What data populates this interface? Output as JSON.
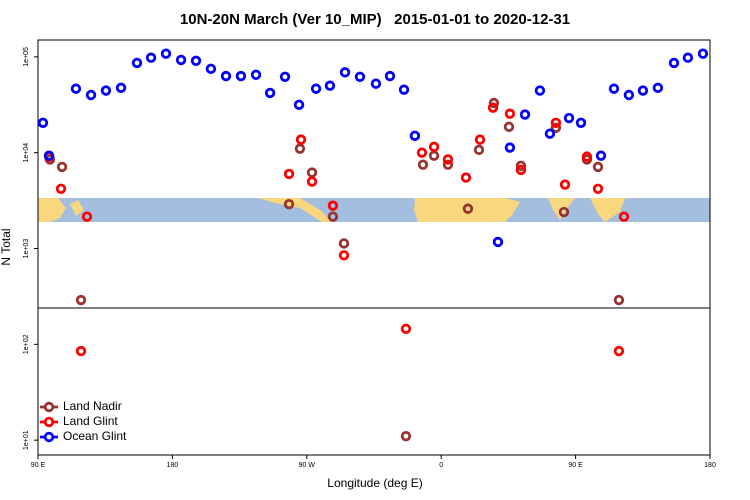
{
  "chart_data": {
    "type": "scatter",
    "title": "10N-20N March (Ver 10_MIP)   2015-01-01 to 2020-12-31",
    "x_label": "Longitude (deg E)",
    "y_label": "N Total",
    "log_y": true,
    "legend": "bottom-left",
    "xlim": [
      90,
      540
    ],
    "xticks": [
      {
        "value": 90,
        "label": "90 E"
      },
      {
        "value": 180,
        "label": "180"
      },
      {
        "value": 270,
        "label": "90 W"
      },
      {
        "value": 360,
        "label": "0"
      },
      {
        "value": 450,
        "label": "90 E"
      },
      {
        "value": 540,
        "label": "180"
      }
    ],
    "ylim": [
      7,
      150000
    ],
    "yticks": [
      {
        "value": 10,
        "label": "1e+01"
      },
      {
        "value": 100,
        "label": "1e+02"
      },
      {
        "value": 1000,
        "label": "1e+03"
      },
      {
        "value": 10000,
        "label": "1e+04"
      },
      {
        "value": 100000,
        "label": "1e+05"
      }
    ],
    "series": [
      {
        "name": "Land Nadir",
        "color": "#993333",
        "x": [
          98.0,
          106.1,
          118.8,
          258.1,
          265.4,
          273.5,
          287.5,
          294.9,
          336.4,
          347.8,
          355.2,
          364.5,
          377.9,
          385.3,
          395.3,
          405.4,
          413.4,
          436.8,
          442.2,
          457.6,
          465.0,
          479.0
        ],
        "values": [
          8500,
          7100,
          290,
          2900,
          11000,
          6200,
          2150,
          1130,
          11,
          7500,
          9300,
          7500,
          2600,
          10700,
          33000,
          18600,
          7300,
          18200,
          2400,
          8500,
          7100,
          290
        ]
      },
      {
        "name": "Land Glint",
        "color": "#ff0000",
        "x": [
          97.4,
          105.4,
          122.8,
          118.8,
          258.1,
          266.1,
          273.5,
          287.5,
          294.9,
          336.4,
          347.1,
          355.2,
          364.5,
          376.6,
          386.0,
          394.7,
          406.0,
          413.4,
          436.8,
          442.9,
          457.6,
          465.0,
          482.4,
          479.0
        ],
        "values": [
          9100,
          4200,
          2150,
          85,
          6000,
          13700,
          5000,
          2800,
          850,
          145,
          10000,
          11500,
          8500,
          5500,
          13700,
          29500,
          25500,
          6600,
          20500,
          4650,
          9100,
          4200,
          2150,
          85
        ]
      },
      {
        "name": "Ocean Glint",
        "color": "#0000ff",
        "x": [
          93.3,
          97.4,
          115.4,
          125.5,
          135.5,
          145.6,
          156.3,
          165.7,
          175.7,
          185.8,
          195.8,
          205.8,
          215.9,
          225.9,
          236.0,
          245.4,
          255.4,
          264.8,
          276.2,
          285.5,
          295.6,
          305.6,
          316.3,
          325.7,
          335.1,
          342.4,
          398.0,
          406.0,
          416.1,
          426.1,
          432.8,
          445.6,
          453.6,
          467.0,
          475.7,
          485.7,
          495.1,
          505.1,
          515.9,
          525.2,
          535.3
        ],
        "values": [
          20500,
          9300,
          46500,
          40000,
          44500,
          47500,
          86500,
          98000,
          108000,
          93000,
          91000,
          75000,
          63000,
          63000,
          65000,
          42000,
          62000,
          31600,
          46500,
          50000,
          69000,
          62000,
          52500,
          63000,
          45500,
          15000,
          1170,
          11300,
          25000,
          44500,
          15800,
          23000,
          20500,
          9300,
          46500,
          40000,
          44500,
          47500,
          86500,
          98000,
          108000
        ]
      }
    ]
  }
}
